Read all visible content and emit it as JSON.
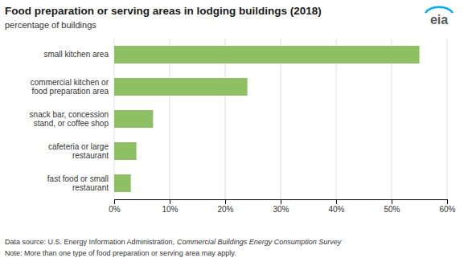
{
  "chart_data": {
    "type": "bar",
    "orientation": "horizontal",
    "title": "Food preparation or serving areas in lodging buildings (2018)",
    "subtitle": "percentage of buildings",
    "categories": [
      "fast food or small\nrestaurant",
      "cafeteria or large\nrestaurant",
      "snack bar, concession\nstand, or coffee shop",
      "commercial kitchen or\nfood preparation area",
      "small kitchen area"
    ],
    "values": [
      3,
      4,
      7,
      24,
      55
    ],
    "color": "#8DC063",
    "xlim": [
      0,
      60
    ],
    "xticks": [
      {
        "value": 0,
        "label": "0%"
      },
      {
        "value": 10,
        "label": "10%"
      },
      {
        "value": 20,
        "label": "20%"
      },
      {
        "value": 30,
        "label": "30%"
      },
      {
        "value": 40,
        "label": "40%"
      },
      {
        "value": 50,
        "label": "50%"
      },
      {
        "value": 60,
        "label": "60%"
      }
    ],
    "grid": true,
    "annotations": [
      "Data source: U.S. Energy Information Administration,",
      "Commercial Buildings Energy Consumption Survey",
      "Note: More than one type of food preparation or serving area may apply.",
      "eia"
    ]
  }
}
